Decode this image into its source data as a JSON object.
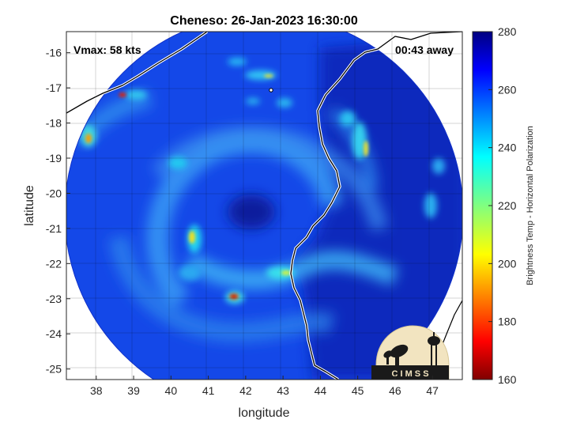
{
  "title": "Cheneso: 26-Jan-2023 16:30:00",
  "vmax_label": "Vmax: 58 kts",
  "time_away_label": "00:43 away",
  "x_axis": {
    "label": "longitude",
    "ticks": [
      "38",
      "39",
      "40",
      "41",
      "42",
      "43",
      "44",
      "45",
      "46",
      "47"
    ]
  },
  "y_axis": {
    "label": "latitude",
    "ticks": [
      "-16",
      "-17",
      "-18",
      "-19",
      "-20",
      "-21",
      "-22",
      "-23",
      "-24",
      "-25"
    ]
  },
  "colorbar": {
    "label": "Brightness Temp - Horizontal Polarization",
    "ticks": [
      "280",
      "260",
      "240",
      "220",
      "200",
      "180",
      "160"
    ],
    "min": 160,
    "max": 280,
    "colormap": "jet"
  },
  "logo": {
    "text": "C I M S S"
  },
  "map": {
    "lon_range": [
      37.2,
      47.8
    ],
    "lat_range": [
      -25.3,
      -15.4
    ],
    "grid": true,
    "swath_center": [
      42.65,
      -20.35
    ],
    "swath_radius_deg": 5.3,
    "storm_center": [
      42.4,
      -20.8
    ]
  },
  "colors": {
    "background_swath": "#1448e8",
    "convection_cyan": "#22d4f0",
    "cold_core_red": "#d42010",
    "eye_dark_blue": "#0a1e9c"
  }
}
